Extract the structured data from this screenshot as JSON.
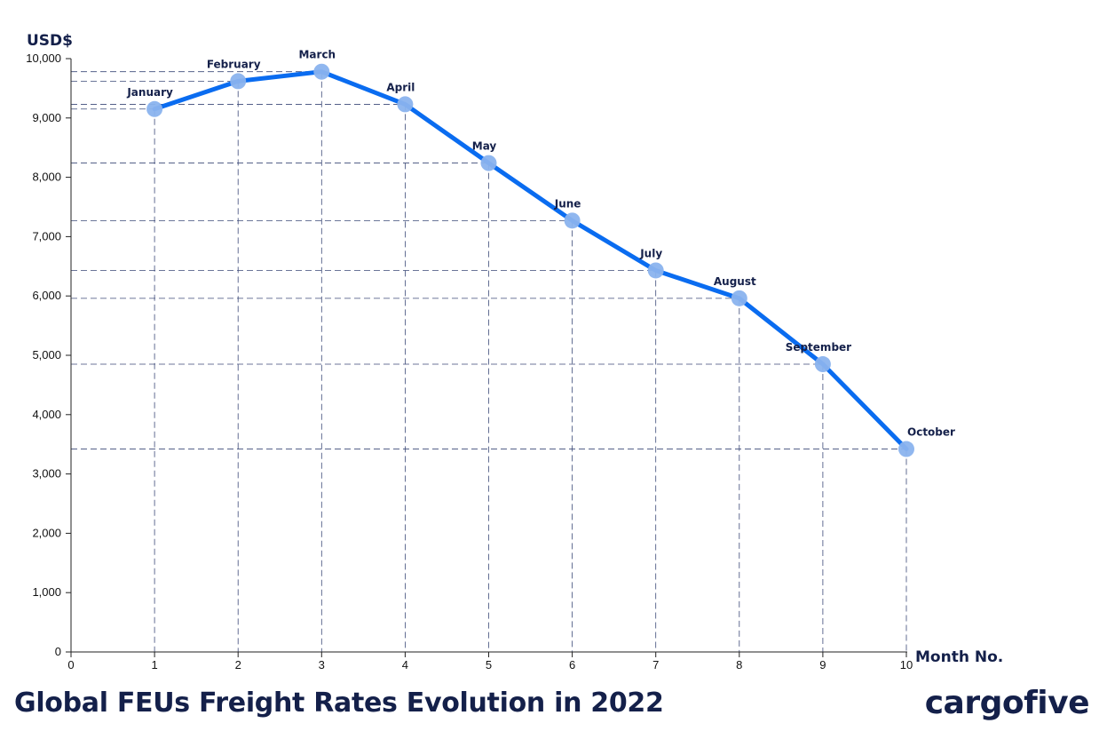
{
  "chart_data": {
    "type": "line",
    "title": "Global FEUs Freight Rates Evolution in 2022",
    "xlabel": "Month No.",
    "ylabel": "USD$",
    "xlim": [
      0,
      10
    ],
    "ylim": [
      0,
      10000
    ],
    "x_ticks": [
      "0",
      "1",
      "2",
      "3",
      "4",
      "5",
      "6",
      "7",
      "8",
      "9",
      "10"
    ],
    "y_ticks": [
      "0",
      "1,000",
      "2,000",
      "3,000",
      "4,000",
      "5,000",
      "6,000",
      "7,000",
      "8,000",
      "9,000",
      "10,000"
    ],
    "grid": "dashed reference lines from each point to both axes",
    "series": [
      {
        "x": [
          1,
          2,
          3,
          4,
          5,
          6,
          7,
          8,
          9,
          10
        ],
        "values": [
          9150,
          9620,
          9780,
          9230,
          8240,
          7270,
          6430,
          5960,
          4850,
          3420
        ],
        "point_labels": [
          "January",
          "February",
          "March",
          "April",
          "May",
          "June",
          "July",
          "August",
          "September",
          "October"
        ]
      }
    ],
    "colors": {
      "line": "#0a6cf0",
      "marker": "#8ab3ee",
      "guide": "#3c4a78",
      "text": "#14204a"
    }
  },
  "footer": {
    "title": "Global FEUs Freight Rates Evolution in 2022"
  },
  "logo": {
    "text": "cargofive"
  }
}
